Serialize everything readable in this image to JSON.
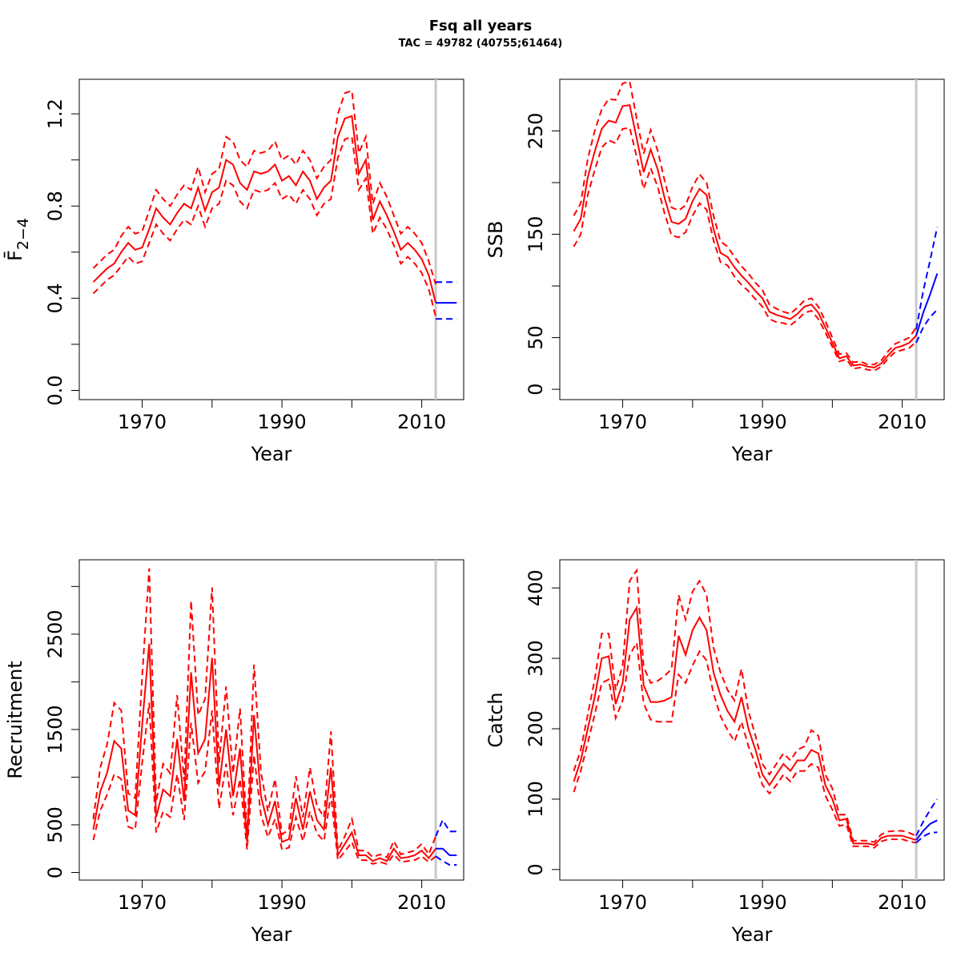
{
  "title": "Fsq all years",
  "subtitle": "TAC = 49782 (40755;61464)",
  "colors": {
    "estimate": "#ff0000",
    "forecast": "#0000ff",
    "divider": "#c8c8c8"
  },
  "chart_data": [
    {
      "type": "line",
      "panel": "top-left",
      "ylabel": "F̄",
      "ylabel_subscript": "2−4",
      "xlabel": "Year",
      "xlim": [
        1961,
        2016
      ],
      "ylim": [
        -0.04,
        1.35
      ],
      "xticks": [
        1970,
        1990,
        2010
      ],
      "xticks_minor": [
        1980,
        2000
      ],
      "yticks": [
        0.0,
        0.4,
        0.8,
        1.2
      ],
      "ytick_labels": [
        "0.0",
        "0.4",
        "0.8",
        "1.2"
      ],
      "yticks_minor": [
        0.2,
        0.6,
        1.0
      ],
      "divider_x": 2012,
      "x": [
        1963,
        1964,
        1965,
        1966,
        1967,
        1968,
        1969,
        1970,
        1971,
        1972,
        1973,
        1974,
        1975,
        1976,
        1977,
        1978,
        1979,
        1980,
        1981,
        1982,
        1983,
        1984,
        1985,
        1986,
        1987,
        1988,
        1989,
        1990,
        1991,
        1992,
        1993,
        1994,
        1995,
        1996,
        1997,
        1998,
        1999,
        2000,
        2001,
        2002,
        2003,
        2004,
        2005,
        2006,
        2007,
        2008,
        2009,
        2010,
        2011,
        2012
      ],
      "estimate": [
        0.47,
        0.5,
        0.53,
        0.55,
        0.6,
        0.64,
        0.61,
        0.62,
        0.7,
        0.79,
        0.75,
        0.72,
        0.77,
        0.81,
        0.79,
        0.88,
        0.78,
        0.86,
        0.88,
        1.0,
        0.98,
        0.9,
        0.87,
        0.95,
        0.94,
        0.95,
        0.98,
        0.91,
        0.93,
        0.89,
        0.95,
        0.91,
        0.83,
        0.88,
        0.91,
        1.1,
        1.18,
        1.19,
        0.94,
        1.0,
        0.74,
        0.82,
        0.76,
        0.69,
        0.61,
        0.64,
        0.61,
        0.57,
        0.5,
        0.38
      ],
      "upper": [
        0.53,
        0.56,
        0.59,
        0.61,
        0.67,
        0.71,
        0.68,
        0.69,
        0.78,
        0.87,
        0.83,
        0.8,
        0.85,
        0.89,
        0.87,
        0.97,
        0.86,
        0.94,
        0.96,
        1.1,
        1.08,
        1.0,
        0.97,
        1.04,
        1.03,
        1.04,
        1.08,
        1.0,
        1.02,
        0.98,
        1.04,
        1.0,
        0.92,
        0.97,
        1.0,
        1.2,
        1.29,
        1.3,
        1.03,
        1.1,
        0.81,
        0.9,
        0.84,
        0.76,
        0.68,
        0.71,
        0.68,
        0.64,
        0.56,
        0.46
      ],
      "lower": [
        0.42,
        0.45,
        0.48,
        0.5,
        0.54,
        0.58,
        0.55,
        0.56,
        0.64,
        0.72,
        0.68,
        0.65,
        0.7,
        0.74,
        0.72,
        0.8,
        0.71,
        0.79,
        0.81,
        0.91,
        0.89,
        0.82,
        0.79,
        0.87,
        0.86,
        0.87,
        0.9,
        0.83,
        0.85,
        0.81,
        0.87,
        0.83,
        0.76,
        0.81,
        0.83,
        1.01,
        1.09,
        1.1,
        0.87,
        0.92,
        0.68,
        0.75,
        0.7,
        0.63,
        0.55,
        0.58,
        0.55,
        0.51,
        0.44,
        0.32
      ],
      "forecast_x": [
        2012,
        2013,
        2014,
        2015
      ],
      "forecast": [
        0.38,
        0.38,
        0.38,
        0.38
      ],
      "forecast_upper": [
        0.47,
        0.47,
        0.47,
        0.47
      ],
      "forecast_lower": [
        0.31,
        0.31,
        0.31,
        0.31
      ]
    },
    {
      "type": "line",
      "panel": "top-right",
      "ylabel": "SSB",
      "xlabel": "Year",
      "xlim": [
        1961,
        2016
      ],
      "ylim": [
        -10,
        300
      ],
      "xticks": [
        1970,
        1990,
        2010
      ],
      "xticks_minor": [
        1980,
        2000
      ],
      "yticks": [
        0,
        50,
        150,
        250
      ],
      "ytick_labels": [
        "0",
        "50",
        "150",
        "250"
      ],
      "yticks_minor": [
        100,
        200
      ],
      "divider_x": 2012,
      "x": [
        1963,
        1964,
        1965,
        1966,
        1967,
        1968,
        1969,
        1970,
        1971,
        1972,
        1973,
        1974,
        1975,
        1976,
        1977,
        1978,
        1979,
        1980,
        1981,
        1982,
        1983,
        1984,
        1985,
        1986,
        1987,
        1988,
        1989,
        1990,
        1991,
        1992,
        1993,
        1994,
        1995,
        1996,
        1997,
        1998,
        1999,
        2000,
        2001,
        2002,
        2003,
        2004,
        2005,
        2006,
        2007,
        2008,
        2009,
        2010,
        2011,
        2012
      ],
      "estimate": [
        153,
        165,
        205,
        230,
        252,
        260,
        258,
        274,
        275,
        243,
        210,
        232,
        213,
        185,
        162,
        160,
        165,
        182,
        194,
        188,
        155,
        132,
        128,
        118,
        110,
        103,
        95,
        88,
        75,
        72,
        70,
        68,
        73,
        80,
        82,
        74,
        60,
        45,
        30,
        32,
        23,
        24,
        22,
        21,
        25,
        33,
        40,
        42,
        45,
        52
      ],
      "upper": [
        168,
        180,
        223,
        250,
        271,
        281,
        280,
        296,
        298,
        262,
        228,
        251,
        231,
        202,
        176,
        173,
        178,
        196,
        208,
        200,
        168,
        143,
        138,
        128,
        119,
        112,
        103,
        96,
        82,
        78,
        75,
        73,
        79,
        86,
        88,
        80,
        66,
        50,
        34,
        35,
        26,
        27,
        24,
        24,
        28,
        37,
        44,
        47,
        50,
        60
      ],
      "lower": [
        138,
        150,
        188,
        212,
        234,
        241,
        238,
        252,
        253,
        225,
        194,
        214,
        196,
        170,
        149,
        147,
        152,
        168,
        180,
        174,
        144,
        123,
        120,
        109,
        101,
        95,
        87,
        80,
        68,
        65,
        64,
        62,
        67,
        74,
        76,
        68,
        55,
        41,
        27,
        29,
        20,
        21,
        19,
        18,
        22,
        30,
        36,
        38,
        40,
        46
      ],
      "forecast_x": [
        2012,
        2013,
        2014,
        2015
      ],
      "forecast": [
        52,
        74,
        92,
        112
      ],
      "forecast_upper": [
        58,
        95,
        125,
        157
      ],
      "forecast_lower": [
        45,
        60,
        70,
        77
      ]
    },
    {
      "type": "line",
      "panel": "bottom-left",
      "ylabel": "Recruitment",
      "xlabel": "Year",
      "xlim": [
        1961,
        2016
      ],
      "ylim": [
        -80,
        3280
      ],
      "xticks": [
        1970,
        1990,
        2010
      ],
      "xticks_minor": [
        1980,
        2000
      ],
      "yticks": [
        0,
        500,
        1500,
        2500
      ],
      "ytick_labels": [
        "0",
        "500",
        "1500",
        "2500"
      ],
      "yticks_minor": [
        1000,
        2000,
        3000
      ],
      "divider_x": 2012,
      "x": [
        1963,
        1964,
        1965,
        1966,
        1967,
        1968,
        1969,
        1970,
        1971,
        1972,
        1973,
        1974,
        1975,
        1976,
        1977,
        1978,
        1979,
        1980,
        1981,
        1982,
        1983,
        1984,
        1985,
        1986,
        1987,
        1988,
        1989,
        1990,
        1991,
        1992,
        1993,
        1994,
        1995,
        1996,
        1997,
        1998,
        1999,
        2000,
        2001,
        2002,
        2003,
        2004,
        2005,
        2006,
        2007,
        2008,
        2009,
        2010,
        2011,
        2012
      ],
      "estimate": [
        450,
        850,
        1050,
        1380,
        1300,
        650,
        600,
        1550,
        2400,
        580,
        870,
        800,
        1400,
        750,
        2100,
        1250,
        1400,
        2250,
        900,
        1500,
        800,
        1300,
        320,
        1650,
        800,
        500,
        750,
        320,
        350,
        780,
        450,
        850,
        550,
        450,
        1100,
        180,
        300,
        420,
        180,
        180,
        120,
        150,
        120,
        250,
        150,
        160,
        180,
        230,
        150,
        250
      ],
      "upper": [
        560,
        1100,
        1350,
        1780,
        1700,
        830,
        780,
        2050,
        3190,
        740,
        1140,
        1040,
        1860,
        960,
        2850,
        1650,
        1820,
        2990,
        1150,
        1950,
        1040,
        1720,
        400,
        2180,
        1050,
        640,
        980,
        400,
        450,
        1010,
        580,
        1100,
        700,
        580,
        1480,
        230,
        380,
        560,
        230,
        230,
        160,
        190,
        160,
        330,
        190,
        210,
        230,
        300,
        190,
        380
      ],
      "lower": [
        340,
        650,
        820,
        1030,
        980,
        480,
        450,
        1150,
        1780,
        420,
        640,
        580,
        1030,
        550,
        1570,
        940,
        1060,
        1700,
        670,
        1140,
        600,
        980,
        240,
        1230,
        600,
        370,
        560,
        240,
        260,
        580,
        330,
        640,
        410,
        330,
        820,
        130,
        220,
        320,
        130,
        130,
        90,
        110,
        90,
        190,
        110,
        120,
        130,
        170,
        110,
        170
      ],
      "forecast_x": [
        2012,
        2013,
        2014,
        2015
      ],
      "forecast": [
        250,
        250,
        180,
        180
      ],
      "forecast_upper": [
        380,
        550,
        430,
        430
      ],
      "forecast_lower": [
        170,
        120,
        80,
        80
      ]
    },
    {
      "type": "line",
      "panel": "bottom-right",
      "ylabel": "Catch",
      "xlabel": "Year",
      "xlim": [
        1961,
        2016
      ],
      "ylim": [
        -15,
        440
      ],
      "xticks": [
        1970,
        1990,
        2010
      ],
      "xticks_minor": [
        1980,
        2000
      ],
      "yticks": [
        0,
        100,
        200,
        300,
        400
      ],
      "ytick_labels": [
        "0",
        "100",
        "200",
        "300",
        "400"
      ],
      "yticks_minor": [],
      "divider_x": 2012,
      "x": [
        1963,
        1964,
        1965,
        1966,
        1967,
        1968,
        1969,
        1970,
        1971,
        1972,
        1973,
        1974,
        1975,
        1976,
        1977,
        1978,
        1979,
        1980,
        1981,
        1982,
        1983,
        1984,
        1985,
        1986,
        1987,
        1988,
        1989,
        1990,
        1991,
        1992,
        1993,
        1994,
        1995,
        1996,
        1997,
        1998,
        1999,
        2000,
        2001,
        2002,
        2003,
        2004,
        2005,
        2006,
        2007,
        2008,
        2009,
        2010,
        2011,
        2012
      ],
      "estimate": [
        125,
        155,
        200,
        245,
        300,
        303,
        235,
        265,
        355,
        372,
        262,
        238,
        238,
        240,
        245,
        332,
        305,
        340,
        358,
        340,
        280,
        248,
        225,
        210,
        245,
        200,
        170,
        135,
        120,
        135,
        150,
        140,
        155,
        155,
        170,
        165,
        120,
        100,
        70,
        72,
        37,
        37,
        37,
        35,
        45,
        48,
        48,
        48,
        45,
        42
      ],
      "upper": [
        140,
        170,
        220,
        270,
        335,
        335,
        255,
        290,
        410,
        425,
        288,
        265,
        268,
        275,
        285,
        390,
        355,
        395,
        410,
        390,
        315,
        280,
        255,
        240,
        285,
        225,
        190,
        150,
        135,
        150,
        165,
        155,
        170,
        175,
        198,
        190,
        135,
        115,
        78,
        78,
        41,
        41,
        41,
        39,
        50,
        54,
        55,
        55,
        52,
        48
      ],
      "lower": [
        110,
        140,
        180,
        220,
        265,
        270,
        215,
        240,
        305,
        322,
        236,
        213,
        210,
        210,
        210,
        277,
        265,
        290,
        310,
        297,
        250,
        218,
        198,
        182,
        210,
        175,
        150,
        120,
        108,
        120,
        135,
        125,
        140,
        140,
        150,
        145,
        105,
        85,
        62,
        64,
        33,
        33,
        33,
        31,
        40,
        43,
        43,
        43,
        40,
        38
      ],
      "forecast_x": [
        2012,
        2013,
        2014,
        2015
      ],
      "forecast": [
        42,
        55,
        65,
        70
      ],
      "forecast_upper": [
        48,
        68,
        85,
        100
      ],
      "forecast_lower": [
        38,
        47,
        52,
        53
      ]
    }
  ]
}
